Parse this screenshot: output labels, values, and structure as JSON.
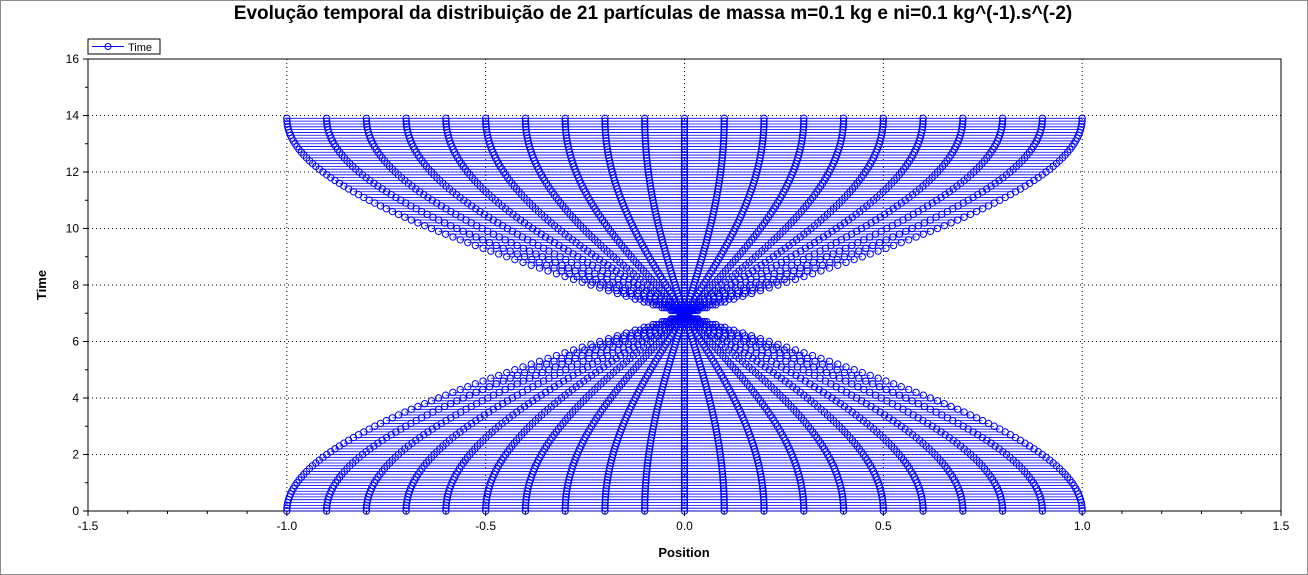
{
  "chart_data": {
    "type": "scatter",
    "title": "Evolução temporal da distribuição de 21 partículas de massa m=0.1 kg e ni=0.1 kg^(-1).s^(-2)",
    "xlabel": "Position",
    "ylabel": "Time",
    "xlim": [
      -1.5,
      1.5
    ],
    "ylim": [
      0,
      16
    ],
    "xticks": [
      "-1.5",
      "-1.0",
      "-0.5",
      "0.0",
      "0.5",
      "1.0",
      "1.5"
    ],
    "yticks": [
      "0",
      "2",
      "4",
      "6",
      "8",
      "10",
      "12",
      "14",
      "16"
    ],
    "grid": true,
    "legend": {
      "position": "top-left",
      "entries": [
        "Time"
      ]
    },
    "series": [
      {
        "name": "Time",
        "marker": "circle-open",
        "color": "#0000ff",
        "particles_initial_x": [
          -1.0,
          -0.9,
          -0.8,
          -0.7,
          -0.6,
          -0.5,
          -0.4,
          -0.3,
          -0.2,
          -0.1,
          0.0,
          0.1,
          0.2,
          0.3,
          0.4,
          0.5,
          0.6,
          0.7,
          0.8,
          0.9,
          1.0
        ],
        "t_start": 0,
        "t_end": 13.9,
        "t_step": 0.1,
        "convergence_time": 6.95,
        "convergence_x": 0.0
      }
    ]
  }
}
